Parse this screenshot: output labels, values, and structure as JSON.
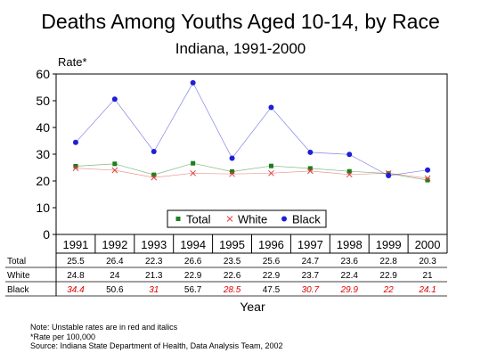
{
  "chart_data": {
    "type": "line",
    "title": "Deaths Among Youths Aged 10-14, by Race",
    "subtitle": "Indiana, 1991-2000",
    "ylabel": "Rate*",
    "xlabel": "Year",
    "ylim": [
      0,
      60
    ],
    "yticks": [
      "0",
      "10",
      "20",
      "30",
      "40",
      "50",
      "60"
    ],
    "grid": false,
    "legend": "bottom-center",
    "categories": [
      "1991",
      "1992",
      "1993",
      "1994",
      "1995",
      "1996",
      "1997",
      "1998",
      "1999",
      "2000"
    ],
    "series": [
      {
        "name": "Total",
        "color": "#1a7f1a",
        "marker": "square",
        "values": [
          25.5,
          26.4,
          22.3,
          26.6,
          23.5,
          25.6,
          24.7,
          23.6,
          22.8,
          20.3
        ],
        "labels": [
          "25.5",
          "26.4",
          "22.3",
          "26.6",
          "23.5",
          "25.6",
          "24.7",
          "23.6",
          "22.8",
          "20.3"
        ],
        "unstable": [
          false,
          false,
          false,
          false,
          false,
          false,
          false,
          false,
          false,
          false
        ]
      },
      {
        "name": "White",
        "color": "#e04040",
        "marker": "x",
        "values": [
          24.8,
          24,
          21.3,
          22.9,
          22.6,
          22.9,
          23.7,
          22.4,
          22.9,
          21
        ],
        "labels": [
          "24.8",
          "24",
          "21.3",
          "22.9",
          "22.6",
          "22.9",
          "23.7",
          "22.4",
          "22.9",
          "21"
        ],
        "unstable": [
          false,
          false,
          false,
          false,
          false,
          false,
          false,
          false,
          false,
          false
        ]
      },
      {
        "name": "Black",
        "color": "#1f1fd6",
        "marker": "circle",
        "values": [
          34.4,
          50.6,
          31,
          56.7,
          28.5,
          47.5,
          30.7,
          29.9,
          22,
          24.1
        ],
        "labels": [
          "34.4",
          "50.6",
          "31",
          "56.7",
          "28.5",
          "47.5",
          "30.7",
          "29.9",
          "22",
          "24.1"
        ],
        "unstable": [
          true,
          false,
          true,
          false,
          true,
          false,
          true,
          true,
          true,
          true
        ]
      }
    ],
    "unstable_color": "#e00000"
  },
  "notes": {
    "line1": "Note:  Unstable rates are in red and italics",
    "line2": "*Rate per 100,000",
    "line3": "Source:  Indiana State Department of Health, Data Analysis Team, 2002"
  }
}
